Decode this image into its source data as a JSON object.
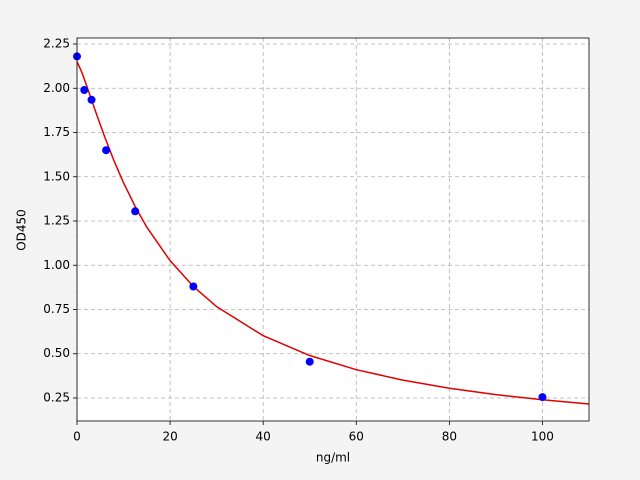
{
  "chart_data": {
    "type": "scatter",
    "xlabel": "ng/ml",
    "ylabel": "OD450",
    "xlim": [
      0,
      110
    ],
    "ylim": [
      0.12,
      2.284
    ],
    "xticks": [
      0,
      20,
      40,
      60,
      80,
      100
    ],
    "yticks": [
      0.25,
      {
        "value": 0.5,
        "label": "0.50"
      },
      0.75,
      {
        "value": 1,
        "label": "1.00"
      },
      1.25,
      {
        "value": 1.5,
        "label": "1.50"
      },
      1.75,
      {
        "value": 2,
        "label": "2.00"
      },
      2.25
    ],
    "grid": true,
    "series": [
      {
        "type": "scatter",
        "color": "#0000ff",
        "x": [
          0,
          1.5625,
          3.125,
          6.25,
          12.5,
          25,
          50,
          100
        ],
        "values": [
          2.18,
          1.99,
          1.935,
          1.65,
          1.305,
          0.88,
          0.455,
          0.255
        ]
      },
      {
        "type": "line",
        "color": "#e00000",
        "x": [
          0,
          1,
          2,
          4,
          6,
          8,
          10,
          12.5,
          15,
          20,
          25,
          30,
          40,
          50,
          60,
          70,
          80,
          90,
          100,
          110
        ],
        "values": [
          2.15,
          2.093,
          2.02,
          1.868,
          1.722,
          1.587,
          1.466,
          1.332,
          1.215,
          1.026,
          0.88,
          0.766,
          0.602,
          0.49,
          0.41,
          0.351,
          0.305,
          0.269,
          0.24,
          0.216
        ]
      }
    ]
  }
}
